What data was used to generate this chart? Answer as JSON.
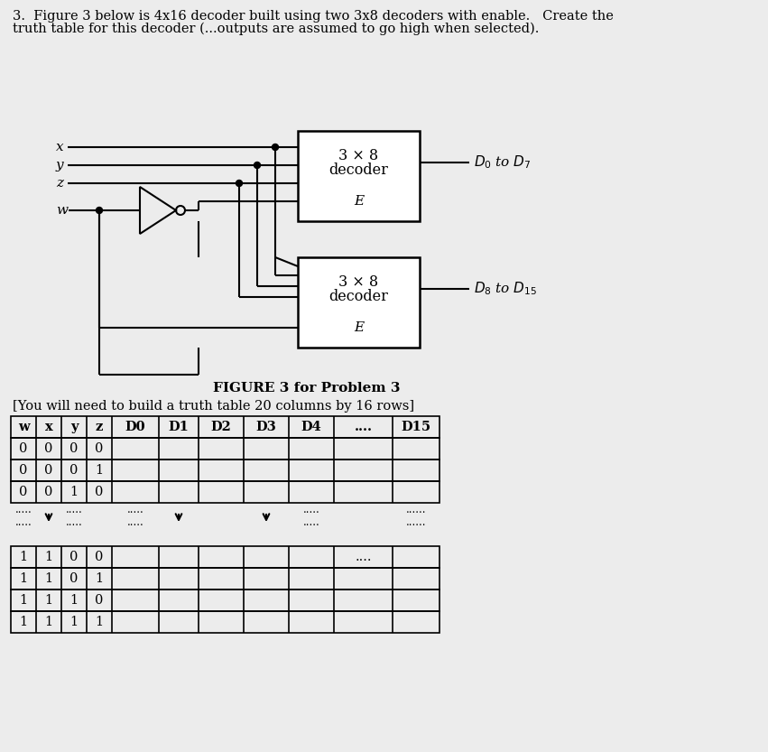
{
  "title_text1": "3.  Figure 3 below is 4x16 decoder built using two 3x8 decoders with enable.   Create the",
  "title_text2": "truth table for this decoder (...outputs are assumed to go high when selected).",
  "figure_caption": "FIGURE 3 for Problem 3",
  "table_note": "[You will need to build a truth table 20 columns by 16 rows]",
  "decoder1_label1": "3 × 8",
  "decoder1_label2": "decoder",
  "decoder2_label1": "3 × 8",
  "decoder2_label2": "decoder",
  "enable_label": "E",
  "output1_label_D": "D",
  "output1_label_sub0": "0",
  "output1_label_mid": " to ",
  "output1_label_D2": "D",
  "output1_label_sub7": "7",
  "output2_label_D": "D",
  "output2_label_sub8": "8",
  "output2_label_mid": " to ",
  "output2_label_D2": "D",
  "output2_label_sub15": "15",
  "table_headers": [
    "w",
    "x",
    "y",
    "z",
    "D0",
    "D1",
    "D2",
    "D3",
    "D4",
    "....",
    "D15"
  ],
  "table_top_rows": [
    [
      "0",
      "0",
      "0",
      "0",
      "",
      "",
      "",
      "",
      "",
      "",
      ""
    ],
    [
      "0",
      "0",
      "0",
      "1",
      "",
      "",
      "",
      "",
      "",
      "",
      ""
    ],
    [
      "0",
      "0",
      "1",
      "0",
      "",
      "",
      "",
      "",
      "",
      "",
      ""
    ]
  ],
  "table_bottom_rows": [
    [
      "1",
      "1",
      "0",
      "0",
      "",
      "",
      "",
      "",
      "",
      "....",
      ""
    ],
    [
      "1",
      "1",
      "0",
      "1",
      "",
      "",
      "",
      "",
      "",
      "",
      ""
    ],
    [
      "1",
      "1",
      "1",
      "0",
      "",
      "",
      "",
      "",
      "",
      "",
      ""
    ],
    [
      "1",
      "1",
      "1",
      "1",
      "",
      "",
      "",
      "",
      "",
      "",
      ""
    ]
  ],
  "bg_color": "#ececec",
  "box_facecolor": "#f5f5f5"
}
